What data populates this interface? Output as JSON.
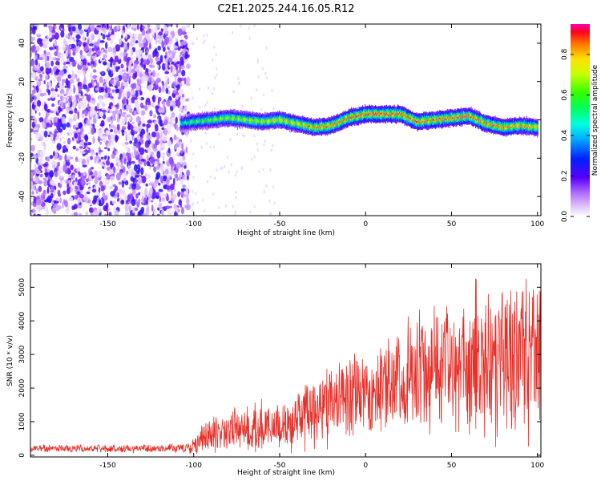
{
  "chart_data": [
    {
      "type": "heatmap",
      "title": "C2E1.2025.244.16.05.R12",
      "xlabel": "Height of straight line (km)",
      "ylabel": "Frequency (Hz)",
      "xlim": [
        -195,
        102
      ],
      "ylim": [
        -50,
        50
      ],
      "xticks": [
        -150,
        -100,
        -50,
        0,
        50,
        100
      ],
      "yticks": [
        -40,
        -20,
        0,
        20,
        40
      ],
      "colorbar": {
        "label": "Normalized spectral amplitude",
        "range": [
          0,
          0.95
        ],
        "ticks": [
          0.0,
          0.2,
          0.4,
          0.6,
          0.8
        ],
        "tick_labels": [
          "0.0",
          "0.2",
          "0.4",
          "0.6",
          "0.8"
        ]
      },
      "noise_region": {
        "x_from": -195,
        "x_to": -103,
        "description_level": "scattered low amplitude 0.1-0.3"
      },
      "signal_trace": {
        "x": [
          -108,
          -100,
          -90,
          -80,
          -70,
          -60,
          -50,
          -40,
          -30,
          -20,
          -10,
          0,
          10,
          20,
          30,
          40,
          50,
          60,
          70,
          80,
          90,
          100
        ],
        "frequency": [
          -2,
          -1,
          0,
          1,
          0,
          -1,
          0,
          -2,
          -4,
          -3,
          1,
          3,
          3,
          3,
          -1,
          0,
          1,
          2,
          -2,
          -4,
          -3,
          -4
        ],
        "peak_amplitude": [
          0.5,
          0.6,
          0.65,
          0.7,
          0.72,
          0.75,
          0.78,
          0.8,
          0.85,
          0.88,
          0.9,
          0.92,
          0.93,
          0.92,
          0.9,
          0.88,
          0.9,
          0.9,
          0.88,
          0.88,
          0.85,
          0.8
        ]
      }
    },
    {
      "type": "line",
      "title": "",
      "xlabel": "Height of straight line (km)",
      "ylabel": "SNR (10 * v/v)",
      "xlim": [
        -195,
        102
      ],
      "ylim": [
        -50,
        5700
      ],
      "xticks": [
        -150,
        -100,
        -50,
        0,
        50,
        100
      ],
      "yticks": [
        0,
        1000,
        2000,
        3000,
        4000,
        5000
      ],
      "series": [
        {
          "name": "SNR",
          "color": "#e8302a",
          "x": [
            -195,
            -180,
            -160,
            -140,
            -120,
            -105,
            -100,
            -95,
            -90,
            -80,
            -70,
            -60,
            -50,
            -40,
            -30,
            -20,
            -10,
            0,
            10,
            20,
            30,
            40,
            50,
            60,
            70,
            80,
            90,
            100
          ],
          "median": [
            200,
            200,
            200,
            200,
            200,
            220,
            260,
            500,
            600,
            700,
            750,
            800,
            900,
            1050,
            1300,
            1500,
            1700,
            1900,
            2100,
            2400,
            2600,
            2700,
            2750,
            2800,
            2850,
            2850,
            2900,
            2850
          ],
          "spread": [
            120,
            120,
            120,
            120,
            130,
            160,
            250,
            450,
            550,
            650,
            700,
            750,
            800,
            950,
            1100,
            1200,
            1300,
            1450,
            1600,
            1800,
            2000,
            2200,
            2300,
            2400,
            2500,
            2500,
            2600,
            2500
          ]
        }
      ]
    }
  ]
}
